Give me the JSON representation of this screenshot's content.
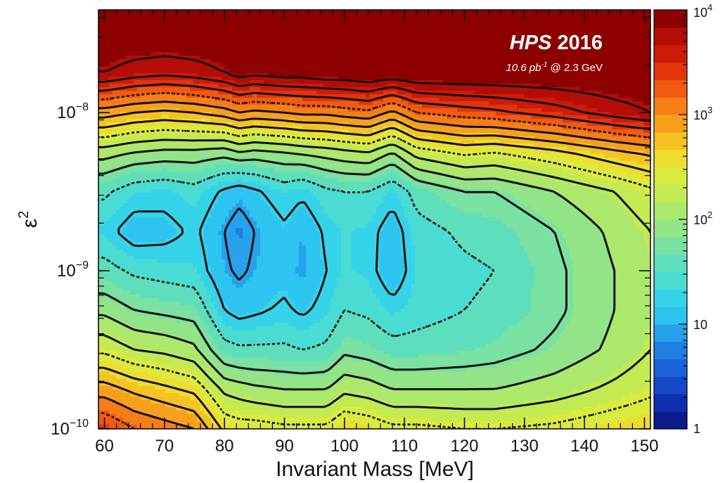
{
  "chart_data": {
    "type": "heatmap",
    "title": "HPS 2016",
    "subtitle_pre": "10.6 pb",
    "subtitle_exp": "-1",
    "subtitle_post": " @ 2.3 GeV",
    "xlabel": "Invariant Mass [MeV]",
    "ylabel_base": "ε",
    "ylabel_exp": "2",
    "x_range": [
      59,
      151
    ],
    "y_range_log10": [
      -10,
      -7.35
    ],
    "y_scale": "log",
    "x_ticks": [
      60,
      70,
      80,
      90,
      100,
      110,
      120,
      130,
      140,
      150
    ],
    "x_tick_labels": [
      "60",
      "70",
      "80",
      "90",
      "100",
      "110",
      "120",
      "130",
      "140",
      "150"
    ],
    "y_ticks": [
      {
        "exp": -10,
        "base": "10",
        "sup": "−10"
      },
      {
        "exp": -9,
        "base": "10",
        "sup": "−9"
      },
      {
        "exp": -8,
        "base": "10",
        "sup": "−8"
      }
    ],
    "colorbar": {
      "scale": "log",
      "range": [
        1,
        10000
      ],
      "ticks": [
        {
          "value": 1,
          "base": "1",
          "sup": ""
        },
        {
          "value": 10,
          "base": "10",
          "sup": ""
        },
        {
          "value": 100,
          "base": "10",
          "sup": "2"
        },
        {
          "value": 1000,
          "base": "10",
          "sup": "3"
        },
        {
          "value": 10000,
          "base": "10",
          "sup": "4"
        }
      ],
      "colors": [
        "#0c1a8c",
        "#0f2fb0",
        "#1448c8",
        "#1a62d8",
        "#1f7ee2",
        "#26a2ec",
        "#2dc4f0",
        "#36d3e8",
        "#4adbd3",
        "#5fdebb",
        "#7ae1a2",
        "#93e487",
        "#abe86c",
        "#c4ea52",
        "#dbea3f",
        "#eedd2e",
        "#f6c122",
        "#f7a01c",
        "#f57f16",
        "#f05b10",
        "#e2350c",
        "#cd1b09",
        "#b30d06",
        "#8c0000"
      ]
    },
    "contour_levels_log10": [
      0.95,
      1.2,
      1.5,
      1.8,
      2.0,
      2.2,
      2.4,
      2.6,
      2.8,
      3.0,
      3.2,
      3.4,
      3.6,
      3.8
    ],
    "rows_log10_eps2": [
      -10.0,
      -9.75,
      -9.5,
      -9.25,
      -9.0,
      -8.75,
      -8.5,
      -8.25,
      -8.0,
      -7.75,
      -7.5
    ],
    "columns": [
      {
        "mass": 60,
        "log10_signal": [
          3.4,
          2.9,
          2.35,
          1.95,
          1.6,
          1.3,
          1.55,
          2.1,
          2.9,
          3.8,
          4.0
        ]
      },
      {
        "mass": 65,
        "log10_signal": [
          3.2,
          2.75,
          2.2,
          1.8,
          1.45,
          1.05,
          1.35,
          2.0,
          2.8,
          3.7,
          4.0
        ]
      },
      {
        "mass": 70,
        "log10_signal": [
          3.1,
          2.65,
          2.15,
          1.75,
          1.4,
          1.1,
          1.3,
          1.95,
          2.75,
          3.65,
          4.0
        ]
      },
      {
        "mass": 75,
        "log10_signal": [
          3.0,
          2.55,
          2.05,
          1.7,
          1.35,
          1.25,
          1.4,
          1.95,
          2.8,
          3.7,
          4.0
        ]
      },
      {
        "mass": 80,
        "log10_signal": [
          2.55,
          2.15,
          1.6,
          1.2,
          1.0,
          0.95,
          1.15,
          1.9,
          2.9,
          3.8,
          4.0
        ]
      },
      {
        "mass": 82.5,
        "log10_signal": [
          2.5,
          2.1,
          1.55,
          1.1,
          0.9,
          0.8,
          1.05,
          2.0,
          3.0,
          3.9,
          4.0
        ]
      },
      {
        "mass": 85,
        "log10_signal": [
          2.5,
          2.05,
          1.55,
          1.15,
          1.0,
          0.95,
          1.15,
          1.95,
          2.95,
          3.85,
          4.0
        ]
      },
      {
        "mass": 90,
        "log10_signal": [
          2.45,
          2.0,
          1.55,
          1.25,
          1.1,
          1.15,
          1.35,
          2.0,
          3.0,
          3.9,
          4.0
        ]
      },
      {
        "mass": 93,
        "log10_signal": [
          2.45,
          2.0,
          1.5,
          1.15,
          0.95,
          1.0,
          1.25,
          2.05,
          3.05,
          3.9,
          4.0
        ]
      },
      {
        "mass": 97,
        "log10_signal": [
          2.45,
          2.0,
          1.55,
          1.3,
          1.2,
          1.25,
          1.45,
          2.1,
          3.05,
          3.95,
          4.0
        ]
      },
      {
        "mass": 100,
        "log10_signal": [
          2.6,
          2.15,
          1.75,
          1.5,
          1.35,
          1.35,
          1.5,
          2.15,
          3.1,
          3.95,
          4.0
        ]
      },
      {
        "mass": 104,
        "log10_signal": [
          2.55,
          2.1,
          1.7,
          1.45,
          1.3,
          1.3,
          1.5,
          2.2,
          3.15,
          4.0,
          4.0
        ]
      },
      {
        "mass": 108,
        "log10_signal": [
          2.45,
          2.0,
          1.6,
          1.3,
          1.0,
          1.05,
          1.3,
          2.0,
          2.95,
          3.95,
          4.0
        ]
      },
      {
        "mass": 112,
        "log10_signal": [
          2.45,
          2.0,
          1.6,
          1.4,
          1.35,
          1.4,
          1.6,
          2.3,
          3.2,
          4.0,
          4.0
        ]
      },
      {
        "mass": 120,
        "log10_signal": [
          2.4,
          2.0,
          1.65,
          1.5,
          1.45,
          1.55,
          1.8,
          2.45,
          3.3,
          4.0,
          4.0
        ]
      },
      {
        "mass": 125,
        "log10_signal": [
          2.4,
          2.0,
          1.7,
          1.55,
          1.5,
          1.6,
          1.8,
          2.4,
          3.35,
          4.0,
          4.0
        ]
      },
      {
        "mass": 135,
        "log10_signal": [
          2.45,
          2.1,
          1.85,
          1.75,
          1.75,
          1.8,
          2.0,
          2.55,
          3.5,
          4.0,
          4.0
        ]
      },
      {
        "mass": 145,
        "log10_signal": [
          2.55,
          2.25,
          2.05,
          2.0,
          2.0,
          2.05,
          2.2,
          2.75,
          3.7,
          4.0,
          4.0
        ]
      },
      {
        "mass": 151,
        "log10_signal": [
          2.6,
          2.35,
          2.2,
          2.15,
          2.15,
          2.2,
          2.35,
          2.85,
          3.8,
          4.0,
          4.0
        ]
      }
    ]
  }
}
